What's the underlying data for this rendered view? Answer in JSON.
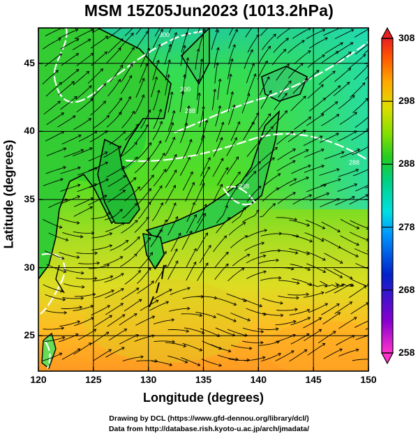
{
  "title": "MSM 15Z05Jun2023 (1013.2hPa)",
  "x_axis": {
    "label": "Longitude (degrees)",
    "ticks": [
      "120",
      "125",
      "130",
      "135",
      "140",
      "145",
      "150"
    ],
    "range": [
      120,
      150
    ]
  },
  "y_axis": {
    "label": "Latitude  (degrees)",
    "ticks": [
      "25",
      "30",
      "35",
      "40",
      "45"
    ],
    "range": [
      22.4,
      47.6
    ]
  },
  "colorbar": {
    "ticks": [
      "258",
      "268",
      "278",
      "288",
      "298",
      "308"
    ],
    "range": [
      258,
      308
    ],
    "colors": [
      "#ff33cc",
      "#8a00d0",
      "#0022cc",
      "#0099ff",
      "#00e0e0",
      "#00d080",
      "#22cc22",
      "#88e000",
      "#dddd00",
      "#ffaa00",
      "#ff5500",
      "#e82020"
    ]
  },
  "credits": {
    "line1": "Drawing by DCL (https://www.gfd-dennou.org/library/dcl/)",
    "line2": "Data from http://database.rish.kyoto-u.ac.jp/arch/jmadata/"
  },
  "contour_labels": [
    "300",
    "300",
    "288",
    "288",
    "288"
  ]
}
